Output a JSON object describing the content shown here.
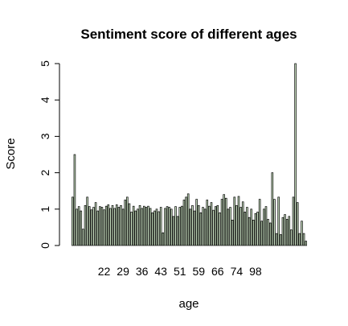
{
  "chart_data": {
    "type": "bar",
    "title": "Sentiment score of different ages",
    "xlabel": "age",
    "ylabel": "Score",
    "ylim": [
      0,
      5
    ],
    "yticks": [
      0,
      1,
      2,
      3,
      4,
      5
    ],
    "xtick_labels": [
      "22",
      "29",
      "36",
      "43",
      "51",
      "59",
      "66",
      "74",
      "98"
    ],
    "xtick_indices": [
      15,
      24,
      33,
      42,
      51,
      60,
      69,
      78,
      87
    ],
    "grid": false,
    "bar_color": "#c7dfbf",
    "bar_edge_color": "#000000",
    "values": [
      1.33,
      2.5,
      1.0,
      1.07,
      0.95,
      0.45,
      1.1,
      1.33,
      1.07,
      0.98,
      1.05,
      1.18,
      0.95,
      1.07,
      1.05,
      0.98,
      1.08,
      1.12,
      1.02,
      1.1,
      1.02,
      1.12,
      1.05,
      1.1,
      1.0,
      1.25,
      1.33,
      1.15,
      0.92,
      1.08,
      0.95,
      1.0,
      1.1,
      1.02,
      1.08,
      1.05,
      1.08,
      1.02,
      0.9,
      0.95,
      1.0,
      0.93,
      1.05,
      0.35,
      1.02,
      1.07,
      1.05,
      1.0,
      0.8,
      1.07,
      0.8,
      1.05,
      1.08,
      1.25,
      1.33,
      1.42,
      1.0,
      1.1,
      0.95,
      1.27,
      1.1,
      0.9,
      1.05,
      1.0,
      1.25,
      1.08,
      1.18,
      0.97,
      1.07,
      1.1,
      0.9,
      1.27,
      1.4,
      1.3,
      1.0,
      1.05,
      0.7,
      1.33,
      1.1,
      1.35,
      1.05,
      1.2,
      0.92,
      1.05,
      0.77,
      1.0,
      0.7,
      0.88,
      0.92,
      1.27,
      0.67,
      1.0,
      1.07,
      0.72,
      0.62,
      2.0,
      1.27,
      0.33,
      1.33,
      0.3,
      0.77,
      0.85,
      0.72,
      0.8,
      0.43,
      1.33,
      5.0,
      1.18,
      0.33,
      0.67,
      0.33,
      0.12
    ]
  }
}
